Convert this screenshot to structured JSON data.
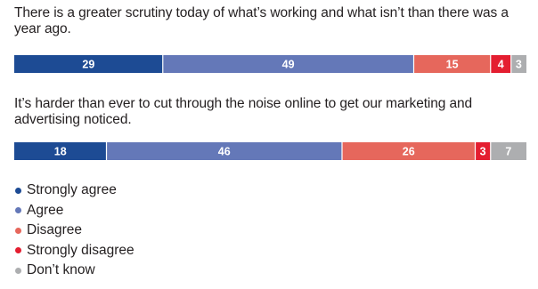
{
  "chart_data": {
    "type": "bar",
    "orientation": "horizontal-stacked",
    "categories": [
      "There is a greater scrutiny today of what’s working and what isn’t than there was a year ago.",
      "It’s harder than ever to cut through the noise online to get our marketing and advertising noticed."
    ],
    "series": [
      {
        "name": "Strongly agree",
        "values": [
          29,
          18
        ],
        "color": "#1d4b94"
      },
      {
        "name": "Agree",
        "values": [
          49,
          46
        ],
        "color": "#6478b8"
      },
      {
        "name": "Disagree",
        "values": [
          15,
          26
        ],
        "color": "#e6675c"
      },
      {
        "name": "Strongly disagree",
        "values": [
          4,
          3
        ],
        "color": "#e41e30"
      },
      {
        "name": "Don’t know",
        "values": [
          3,
          7
        ],
        "color": "#adaeb0"
      }
    ],
    "legend_placement": "bottom-left",
    "grid": false
  }
}
